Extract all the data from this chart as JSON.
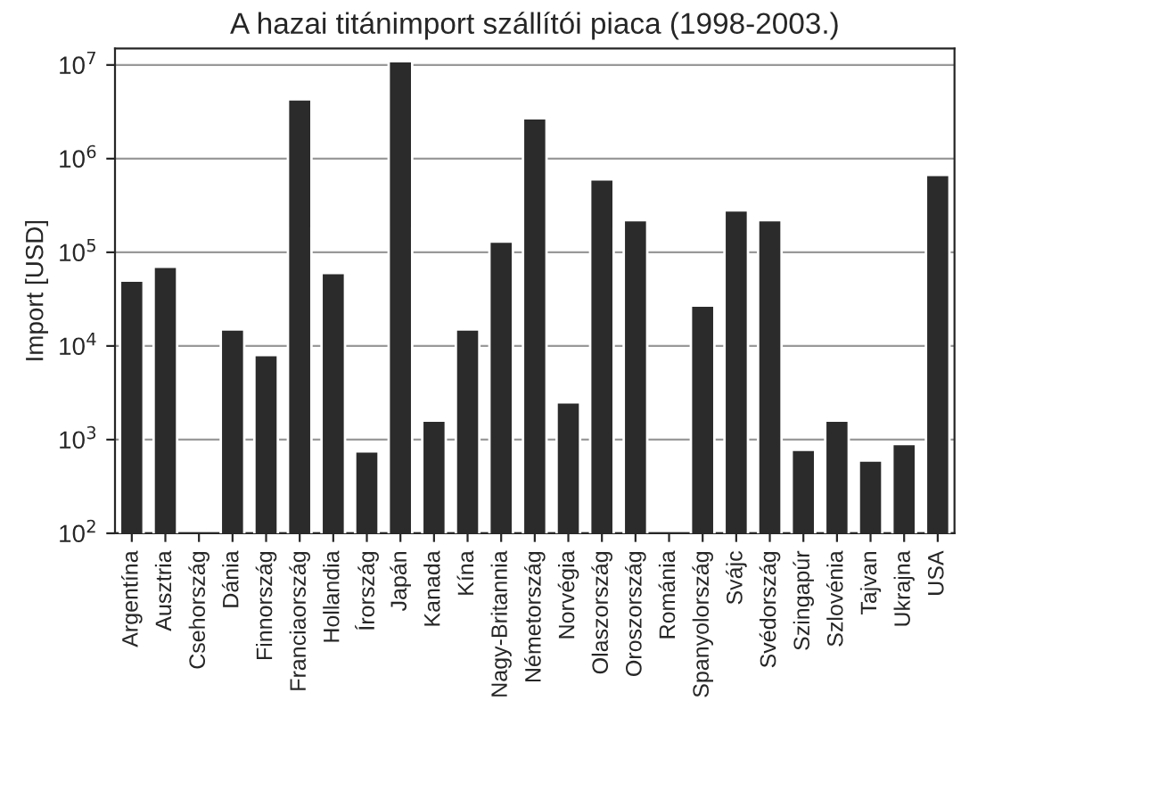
{
  "chart_data": {
    "type": "bar",
    "title": "A hazai titánimport szállítói piaca (1998-2003.)",
    "ylabel": "Import [USD]",
    "categories": [
      "Argentína",
      "Ausztria",
      "Csehország",
      "Dánia",
      "Finnország",
      "Franciaország",
      "Hollandia",
      "Írország",
      "Japán",
      "Kanada",
      "Kína",
      "Nagy-Britannia",
      "Németország",
      "Norvégia",
      "Olaszország",
      "Oroszország",
      "Románia",
      "Spanyolország",
      "Svájc",
      "Svédország",
      "Szingapúr",
      "Szlovénia",
      "Tajvan",
      "Ukrajna",
      "USA"
    ],
    "values": [
      50000,
      70000,
      null,
      15000,
      8000,
      4300000,
      60000,
      750,
      11000000,
      1600,
      15000,
      130000,
      2700000,
      2500,
      600000,
      220000,
      null,
      27000,
      280000,
      220000,
      780,
      1600,
      600,
      900,
      670000
    ],
    "color": "#2b2b2b",
    "log": "y",
    "ylim": [
      100,
      15000000
    ],
    "yticks": [
      {
        "value": 100,
        "label": "10$^{2}$"
      },
      {
        "value": 1000,
        "label": "10$^{3}$"
      },
      {
        "value": 10000,
        "label": "10$^{4}$"
      },
      {
        "value": 100000,
        "label": "10$^{5}$"
      },
      {
        "value": 1000000,
        "label": "10$^{6}$"
      },
      {
        "value": 10000000,
        "label": "10$^{7}$"
      }
    ],
    "grid": "y"
  }
}
